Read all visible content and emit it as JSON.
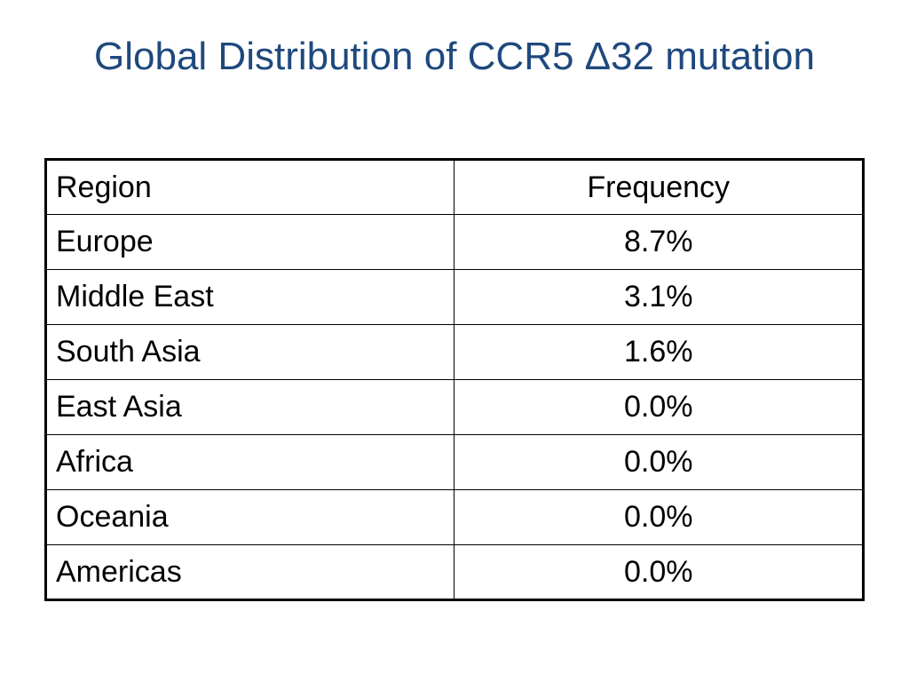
{
  "slide": {
    "title": "Global Distribution of CCR5 Δ32 mutation"
  },
  "table": {
    "headers": {
      "region": "Region",
      "frequency": "Frequency"
    },
    "rows": [
      {
        "region": "Europe",
        "frequency": "8.7%"
      },
      {
        "region": "Middle East",
        "frequency": "3.1%"
      },
      {
        "region": "South Asia",
        "frequency": "1.6%"
      },
      {
        "region": "East Asia",
        "frequency": "0.0%"
      },
      {
        "region": "Africa",
        "frequency": "0.0%"
      },
      {
        "region": "Oceania",
        "frequency": "0.0%"
      },
      {
        "region": "Americas",
        "frequency": "0.0%"
      }
    ]
  }
}
